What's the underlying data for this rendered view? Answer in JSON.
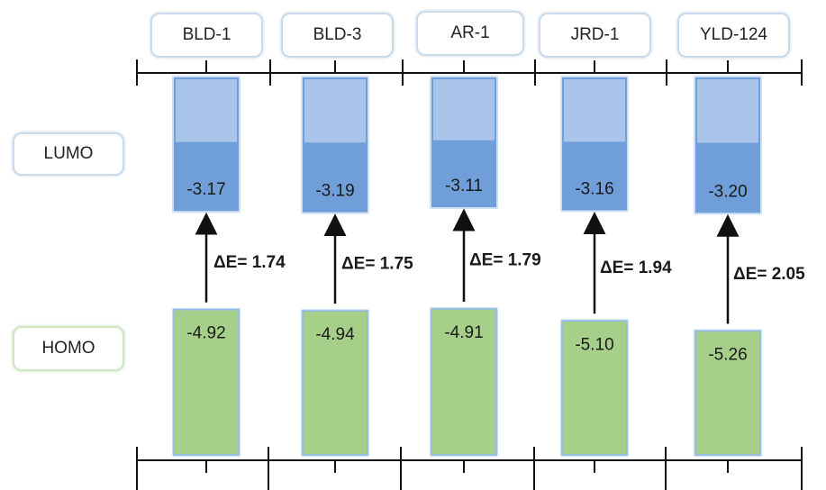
{
  "labels": {
    "lumo": "LUMO",
    "homo": "HOMO"
  },
  "chart_data": {
    "type": "bar",
    "categories": [
      "BLD-1",
      "BLD-3",
      "AR-1",
      "JRD-1",
      "YLD-124"
    ],
    "series": [
      {
        "name": "LUMO",
        "values": [
          -3.17,
          -3.19,
          -3.11,
          -3.16,
          -3.2
        ]
      },
      {
        "name": "HOMO",
        "values": [
          -4.92,
          -4.94,
          -4.91,
          -5.1,
          -5.26
        ]
      }
    ],
    "gap_labels": [
      "ΔE= 1.74",
      "ΔE= 1.75",
      "ΔE= 1.79",
      "ΔE= 1.94",
      "ΔE= 2.05"
    ],
    "gap_values": [
      1.74,
      1.75,
      1.79,
      1.94,
      2.05
    ],
    "colors": {
      "lumo": "#6f9ed9",
      "lumo_light": "#a9c6ea",
      "homo": "#a6d08a",
      "homo_border": "#8fb8e6"
    }
  }
}
